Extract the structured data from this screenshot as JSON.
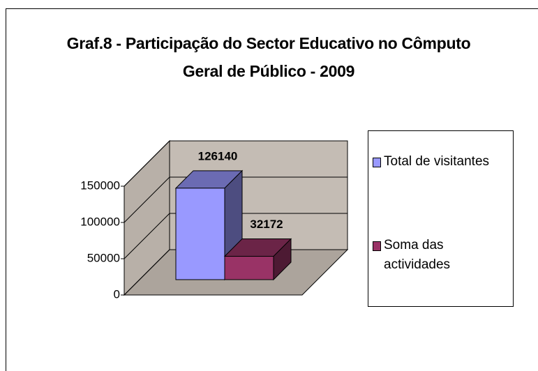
{
  "chart_data": {
    "type": "bar",
    "title": "Graf.8 - Participação do Sector Educativo no Cômputo Geral de Público - 2009",
    "categories": [
      null
    ],
    "series": [
      {
        "name": "Total de visitantes",
        "color": "#9999ff",
        "values": [
          126140
        ]
      },
      {
        "name": "Soma das actividades",
        "color": "#993366",
        "values": [
          32172
        ]
      }
    ],
    "ylim": [
      0,
      150000
    ],
    "yticks": [
      0,
      50000,
      100000,
      150000
    ],
    "grid": true
  }
}
